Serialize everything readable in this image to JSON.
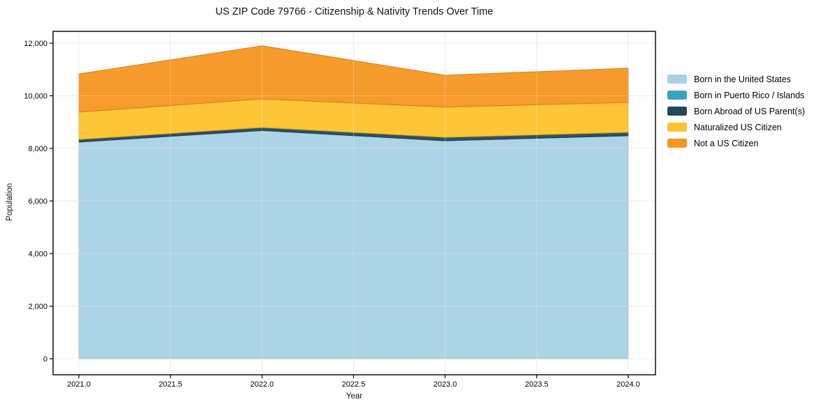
{
  "chart_data": {
    "type": "area",
    "stacked": true,
    "title": "US ZIP Code 79766 - Citizenship & Nativity Trends Over Time",
    "xlabel": "Year",
    "ylabel": "Population",
    "x": [
      2021,
      2022,
      2023,
      2024
    ],
    "series": [
      {
        "name": "Born in the United States",
        "color": "#a8d1e5",
        "values": [
          8240,
          8680,
          8290,
          8480
        ]
      },
      {
        "name": "Born in Puerto Rico / Islands",
        "color": "#3ba3c2",
        "values": [
          0,
          0,
          0,
          0
        ]
      },
      {
        "name": "Born Abroad of US Parent(s)",
        "color": "#26475a",
        "values": [
          100,
          115,
          130,
          130
        ]
      },
      {
        "name": "Naturalized US Citizen",
        "color": "#fcc32c",
        "values": [
          1040,
          1085,
          1150,
          1140
        ]
      },
      {
        "name": "Not a US Citizen",
        "color": "#f79622",
        "values": [
          1450,
          2020,
          1210,
          1300
        ]
      }
    ],
    "totals": [
      10830,
      11900,
      10780,
      11050
    ],
    "xlim": [
      2021,
      2024
    ],
    "ylim": [
      0,
      12000
    ],
    "x_tick_values": [
      2021.0,
      2021.5,
      2022.0,
      2022.5,
      2023.0,
      2023.5,
      2024.0
    ],
    "x_ticks": [
      "2021.0",
      "2021.5",
      "2022.0",
      "2022.5",
      "2023.0",
      "2023.5",
      "2024.0"
    ],
    "y_tick_values": [
      0,
      2000,
      4000,
      6000,
      8000,
      10000,
      12000
    ],
    "y_ticks": [
      "0",
      "2,000",
      "4,000",
      "6,000",
      "8,000",
      "10,000",
      "12,000"
    ],
    "grid": true,
    "legend_position": "right",
    "grid_color": "#e4e4e4",
    "frame_color": "#000000"
  }
}
